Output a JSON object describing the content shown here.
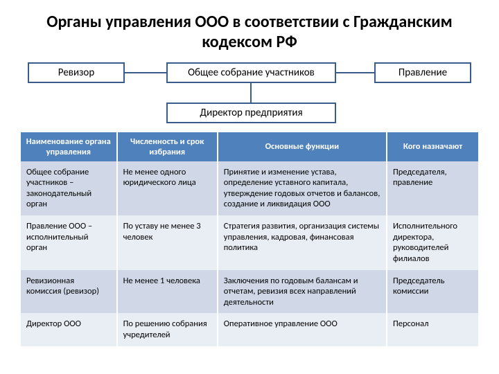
{
  "title": "Органы управления ООО  в соответствии с Гражданским кодексом РФ",
  "diagram": {
    "left": "Ревизор",
    "mid": "Общее собрание участников",
    "right": "Правление",
    "bottom": "Директор предприятия"
  },
  "table": {
    "headers": {
      "c1": "Наименование органа управления",
      "c2": "Численность и срок избрания",
      "c3": "Основные функции",
      "c4": "Кого назначают"
    },
    "rows": [
      {
        "c1": "Общее собрание участников – законодательный орган",
        "c2": "Не менее одного юридического лица",
        "c3": "Принятие и изменение устава, определение уставного капитала, утверждение годовых отчетов и балансов, создание и ликвидация ООО",
        "c4": "Председателя, правление"
      },
      {
        "c1": "Правление ООО – исполнительный орган",
        "c2": "По уставу не менее 3 человек",
        "c3": "Стратегия развития, организация системы управления, кадровая, финансовая политика",
        "c4": "Исполнительного директора, руководителей филиалов"
      },
      {
        "c1": "Ревизионная комиссия (ревизор)",
        "c2": "Не менее 1 человека",
        "c3": "Заключения по годовым балансам и отчетам, ревизия всех направлений деятельности",
        "c4": "Председатель комиссии"
      },
      {
        "c1": "Директор ООО",
        "c2": "По решению собрания учредителей",
        "c3": "Оперативное управление ООО",
        "c4": "Персонал"
      }
    ]
  }
}
